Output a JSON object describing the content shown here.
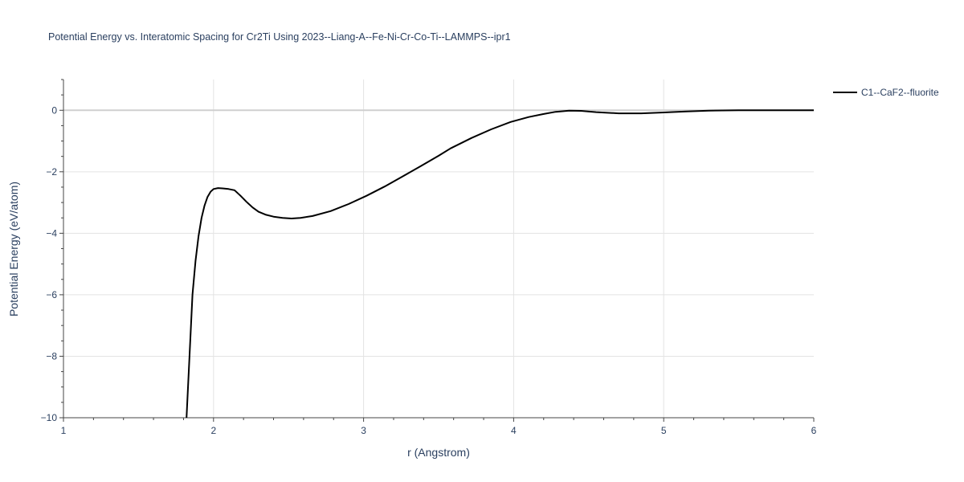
{
  "chart_data": {
    "type": "line",
    "title": "Potential Energy vs. Interatomic Spacing for Cr2Ti Using 2023--Liang-A--Fe-Ni-Cr-Co-Ti--LAMMPS--ipr1",
    "xlabel": "r (Angstrom)",
    "ylabel": "Potential Energy (eV/atom)",
    "xlim": [
      1,
      6
    ],
    "ylim": [
      -10,
      1
    ],
    "x_ticks": [
      1,
      2,
      3,
      4,
      5,
      6
    ],
    "y_ticks": [
      0,
      -2,
      -4,
      -6,
      -8,
      -10
    ],
    "x_tick_labels": [
      "1",
      "2",
      "3",
      "4",
      "5",
      "6"
    ],
    "y_tick_labels": [
      "0",
      "−2",
      "−4",
      "−6",
      "−8",
      "−10"
    ],
    "grid": true,
    "legend_position": "top-right",
    "series": [
      {
        "name": "C1--CaF2--fluorite",
        "color": "#000000",
        "x": [
          1.82,
          1.84,
          1.86,
          1.88,
          1.9,
          1.92,
          1.94,
          1.96,
          1.98,
          2.0,
          2.03,
          2.06,
          2.1,
          2.14,
          2.18,
          2.22,
          2.26,
          2.3,
          2.35,
          2.4,
          2.46,
          2.52,
          2.58,
          2.66,
          2.78,
          2.9,
          3.02,
          3.14,
          3.26,
          3.38,
          3.5,
          3.58,
          3.72,
          3.85,
          3.98,
          4.1,
          4.2,
          4.28,
          4.37,
          4.45,
          4.55,
          4.7,
          4.85,
          5.0,
          5.15,
          5.3,
          5.5,
          5.75,
          6.0
        ],
        "y": [
          -10.0,
          -8.0,
          -6.0,
          -4.9,
          -4.1,
          -3.5,
          -3.1,
          -2.82,
          -2.65,
          -2.56,
          -2.53,
          -2.54,
          -2.56,
          -2.6,
          -2.78,
          -2.98,
          -3.16,
          -3.3,
          -3.4,
          -3.46,
          -3.5,
          -3.52,
          -3.5,
          -3.44,
          -3.28,
          -3.05,
          -2.78,
          -2.48,
          -2.15,
          -1.82,
          -1.48,
          -1.24,
          -0.9,
          -0.62,
          -0.38,
          -0.22,
          -0.12,
          -0.05,
          -0.01,
          -0.02,
          -0.06,
          -0.1,
          -0.1,
          -0.07,
          -0.04,
          -0.01,
          0.0,
          0.0,
          0.0
        ]
      }
    ]
  }
}
